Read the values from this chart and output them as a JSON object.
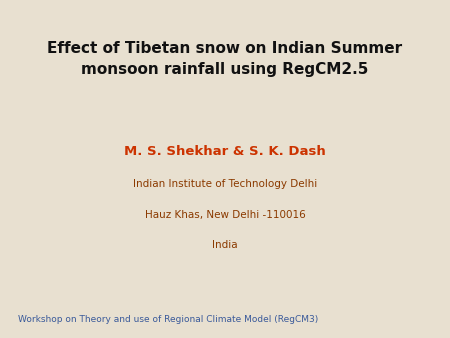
{
  "background_color": "#e8e0d0",
  "title_line1": "Effect of Tibetan snow on Indian Summer",
  "title_line2": "monsoon rainfall using RegCM2.5",
  "title_color": "#111111",
  "title_fontsize": 11,
  "title_font": "Comic Sans MS",
  "author_text": "M. S. Shekhar & S. K. Dash",
  "author_color": "#cc3300",
  "author_fontsize": 9.5,
  "author_font": "Comic Sans MS",
  "inst_lines": [
    "Indian Institute of Technology Delhi",
    "Hauz Khas, New Delhi -110016",
    "India"
  ],
  "inst_color": "#8b3a00",
  "inst_fontsize": 7.5,
  "inst_font": "Comic Sans MS",
  "footer_text": "Workshop on Theory and use of Regional Climate Model (RegCM3)",
  "footer_color": "#3a5a9a",
  "footer_fontsize": 6.5,
  "footer_font": "Comic Sans MS"
}
